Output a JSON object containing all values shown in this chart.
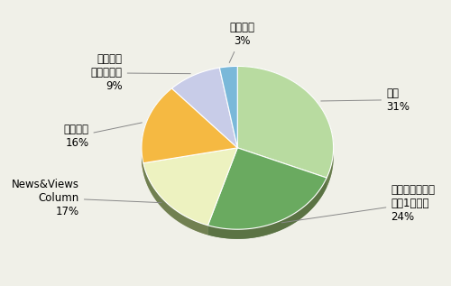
{
  "label_names": [
    "特集",
    "インターネット\n用語1分解説",
    "News&Views\nColumn",
    "統計資料",
    "イベント\nカレンダー",
    "特になし"
  ],
  "pct_labels": [
    "31%",
    "24%",
    "17%",
    "16%",
    "9%",
    "3%"
  ],
  "values": [
    31,
    24,
    17,
    16,
    9,
    3
  ],
  "colors": [
    "#b8dba0",
    "#6aaa60",
    "#edf2c0",
    "#f5b942",
    "#c8cce8",
    "#7ab8d9"
  ],
  "edge_color": "#ffffff",
  "shadow_color": "#6a7a50",
  "background_color": "#f0f0e8",
  "startangle": 90,
  "label_fontsize": 8.5
}
